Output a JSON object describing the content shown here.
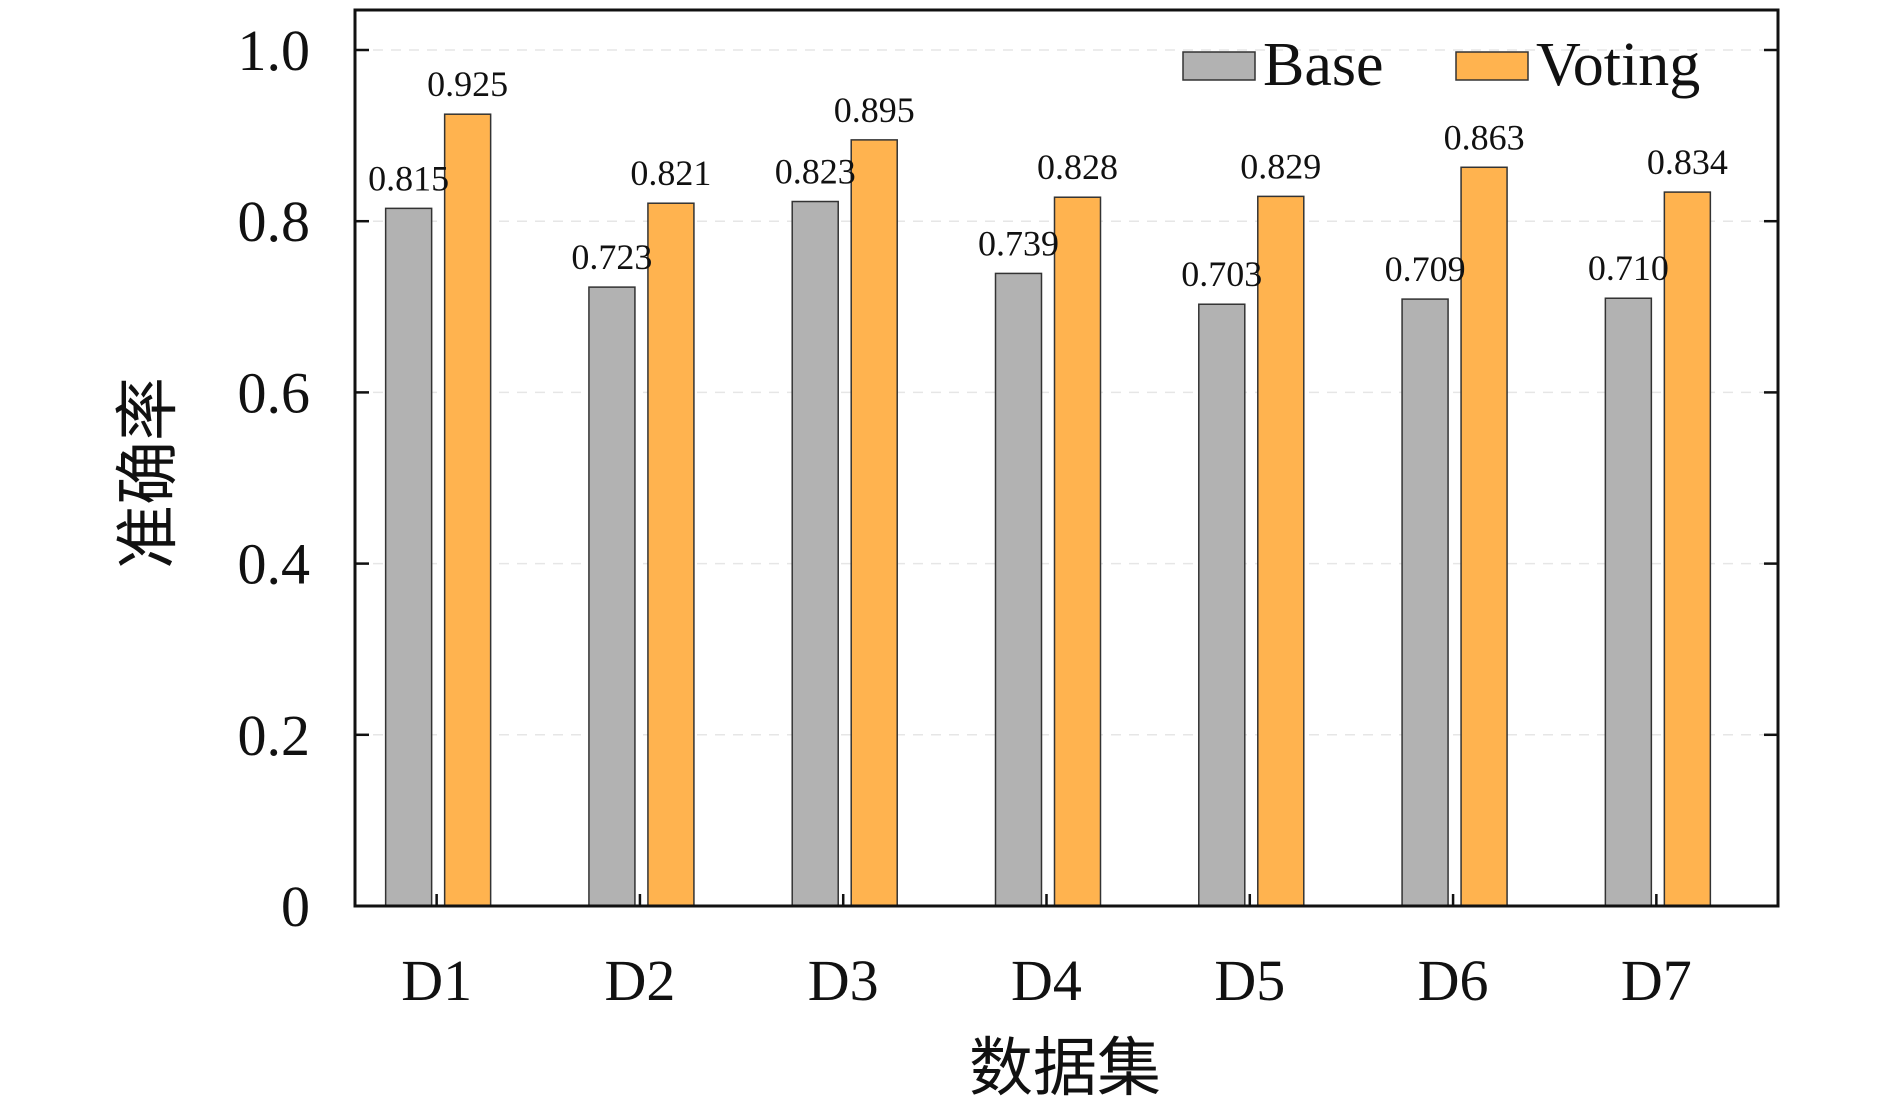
{
  "chart_data": {
    "type": "bar",
    "title": "",
    "xlabel": "数据集",
    "ylabel": "准确率",
    "categories": [
      "D1",
      "D2",
      "D3",
      "D4",
      "D5",
      "D6",
      "D7"
    ],
    "series": [
      {
        "name": "Base",
        "values": [
          0.815,
          0.723,
          0.823,
          0.739,
          0.703,
          0.709,
          0.71
        ],
        "labels": [
          "0.815",
          "0.723",
          "0.823",
          "0.739",
          "0.703",
          "0.709",
          "0.710"
        ],
        "color": "#b2b2b2"
      },
      {
        "name": "Voting",
        "values": [
          0.925,
          0.821,
          0.895,
          0.828,
          0.829,
          0.863,
          0.834
        ],
        "labels": [
          "0.925",
          "0.821",
          "0.895",
          "0.828",
          "0.829",
          "0.863",
          "0.834"
        ],
        "color": "#ffb34f"
      }
    ],
    "ylim": [
      0,
      1.0
    ],
    "yticks": [
      0,
      0.2,
      0.4,
      0.6,
      0.8,
      1.0
    ],
    "ytick_labels": [
      "0",
      "0.2",
      "0.4",
      "0.6",
      "0.8",
      "1.0"
    ],
    "grid": "horizontal dashed, light",
    "legend_position": "top-right"
  }
}
